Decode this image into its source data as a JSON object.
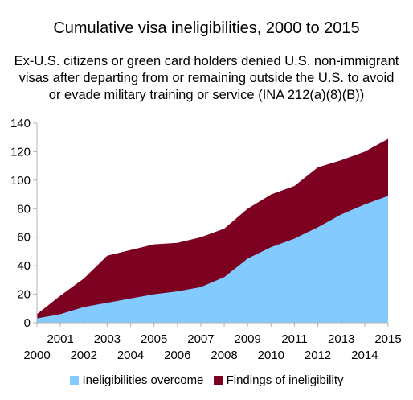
{
  "chart_data": {
    "type": "area",
    "title": "Cumulative visa ineligibilities, 2000 to 2015",
    "subtitle": [
      "Ex-U.S. citizens or green card holders denied U.S. non-immigrant",
      "visas after departing from or remaining outside the U.S. to avoid",
      "or evade military training or service (INA 212(a)(8)(B))"
    ],
    "stacked": true,
    "x": [
      "2000",
      "2001",
      "2002",
      "2003",
      "2004",
      "2005",
      "2006",
      "2007",
      "2008",
      "2009",
      "2010",
      "2011",
      "2012",
      "2013",
      "2014",
      "2015"
    ],
    "series": [
      {
        "name": "Ineligibilities overcome",
        "color": "#83caff",
        "values": [
          3,
          6,
          11,
          14,
          17,
          20,
          22,
          25,
          32,
          45,
          53,
          59,
          67,
          76,
          83,
          89
        ]
      },
      {
        "name": "Findings of ineligibility",
        "color": "#7e0021",
        "values": [
          3,
          13,
          20,
          33,
          34,
          35,
          34,
          35,
          34,
          35,
          37,
          37,
          42,
          38,
          37,
          40
        ]
      }
    ],
    "ylim": [
      0,
      140
    ],
    "yticks": [
      "0",
      "20",
      "40",
      "60",
      "80",
      "100",
      "120",
      "140"
    ],
    "xlabel": "",
    "ylabel": "",
    "grid": false,
    "legend_position": "bottom"
  }
}
